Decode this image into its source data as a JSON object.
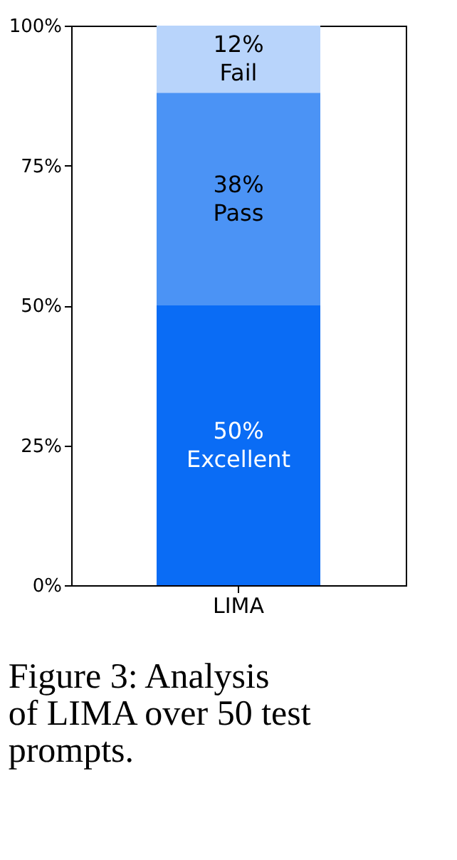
{
  "chart_data": {
    "type": "bar",
    "stacked": true,
    "categories": [
      "LIMA"
    ],
    "series": [
      {
        "name": "Excellent",
        "color": "#0a6cf5",
        "values": [
          50
        ],
        "value_labels": [
          "50%"
        ]
      },
      {
        "name": "Pass",
        "color": "#4b93f5",
        "values": [
          38
        ],
        "value_labels": [
          "38%"
        ]
      },
      {
        "name": "Fail",
        "color": "#b8d4fb",
        "values": [
          12
        ],
        "value_labels": [
          "12%"
        ]
      }
    ],
    "ylim": [
      0,
      100
    ],
    "yticks": [
      {
        "value": 0,
        "label": "0%"
      },
      {
        "value": 25,
        "label": "25%"
      },
      {
        "value": 50,
        "label": "50%"
      },
      {
        "value": 75,
        "label": "75%"
      },
      {
        "value": 100,
        "label": "100%"
      }
    ],
    "grid": false,
    "annotations": [
      "Figure 3: Analysis of LIMA over 50 test prompts."
    ]
  }
}
